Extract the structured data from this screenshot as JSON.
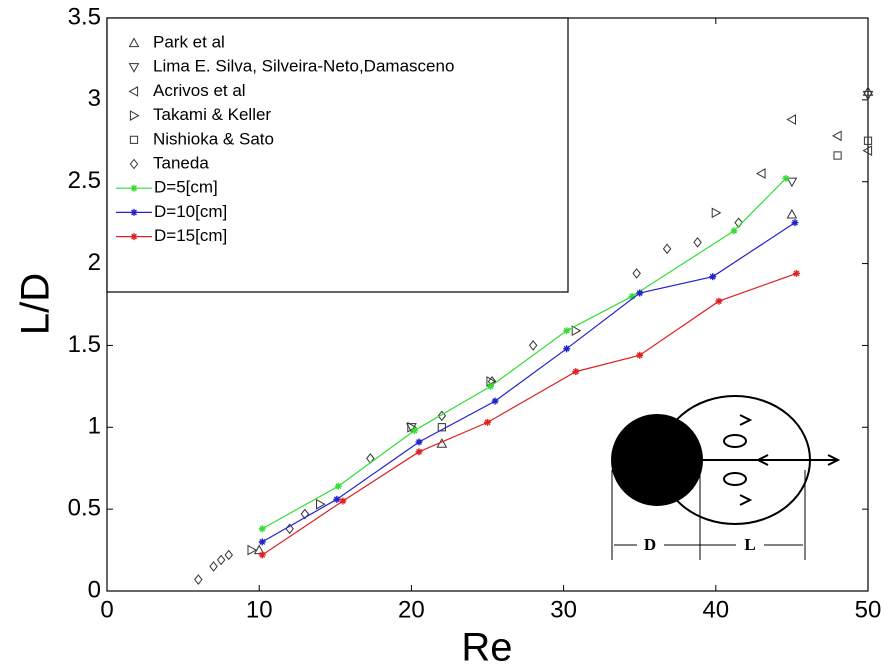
{
  "chart_data": {
    "type": "line",
    "xlabel": "Re",
    "ylabel": "L/D",
    "xlim": [
      0,
      50
    ],
    "xticks": [
      0,
      10,
      20,
      30,
      40,
      50
    ],
    "ylim": [
      0,
      3.5
    ],
    "yticks": [
      0,
      0.5,
      1,
      1.5,
      2,
      2.5,
      3,
      3.5
    ],
    "legend": "upper left",
    "series": [
      {
        "name": "Park et al",
        "color": "#333333",
        "marker": "triangle-up",
        "mode": "markers",
        "x": [
          10,
          22,
          45,
          50
        ],
        "y": [
          0.25,
          0.9,
          2.3,
          3.05
        ]
      },
      {
        "name": "Lima E. Silva, Silveira-Neto,Damasceno",
        "color": "#333333",
        "marker": "triangle-down",
        "mode": "markers",
        "x": [
          20,
          45,
          50
        ],
        "y": [
          1.0,
          2.5,
          3.03
        ]
      },
      {
        "name": "Acrivos et al",
        "color": "#333333",
        "marker": "triangle-left",
        "mode": "markers",
        "x": [
          43,
          45,
          48,
          50
        ],
        "y": [
          2.55,
          2.88,
          2.78,
          2.69
        ]
      },
      {
        "name": "Takami & Keller",
        "color": "#333333",
        "marker": "triangle-right",
        "mode": "markers",
        "x": [
          9.5,
          14,
          20,
          25.2,
          30.8,
          40
        ],
        "y": [
          0.25,
          0.53,
          1.0,
          1.28,
          1.59,
          2.31
        ]
      },
      {
        "name": "Nishioka & Sato",
        "color": "#333333",
        "marker": "square",
        "mode": "markers",
        "x": [
          22,
          48,
          50
        ],
        "y": [
          1.0,
          2.66,
          2.75
        ]
      },
      {
        "name": "Taneda",
        "color": "#333333",
        "marker": "diamond",
        "mode": "markers",
        "x": [
          6,
          7,
          7.5,
          8,
          12,
          13,
          17.3,
          22,
          25.3,
          28,
          34.8,
          36.8,
          38.8,
          41.5
        ],
        "y": [
          0.07,
          0.15,
          0.19,
          0.22,
          0.38,
          0.47,
          0.81,
          1.07,
          1.28,
          1.5,
          1.94,
          2.09,
          2.13,
          2.25
        ]
      },
      {
        "name": "D=5[cm]",
        "color": "#33dd33",
        "marker": "star",
        "mode": "lines+markers",
        "x": [
          10.2,
          15.2,
          20.2,
          25.2,
          30.2,
          34.5,
          41.2,
          44.6
        ],
        "y": [
          0.38,
          0.64,
          0.98,
          1.25,
          1.59,
          1.8,
          2.2,
          2.52
        ]
      },
      {
        "name": "D=10[cm]",
        "color": "#2222cc",
        "marker": "star",
        "mode": "lines+markers",
        "x": [
          10.2,
          15.1,
          20.5,
          25.5,
          30.2,
          35,
          39.8,
          45.2
        ],
        "y": [
          0.3,
          0.56,
          0.91,
          1.16,
          1.48,
          1.82,
          1.92,
          2.25
        ]
      },
      {
        "name": "D=15[cm]",
        "color": "#dd2222",
        "marker": "star",
        "mode": "lines+markers",
        "x": [
          10.2,
          15.5,
          20.5,
          25,
          30.8,
          35,
          40.2,
          45.3
        ],
        "y": [
          0.22,
          0.55,
          0.85,
          1.03,
          1.34,
          1.44,
          1.77,
          1.94
        ]
      }
    ],
    "annotations": [
      "D",
      "L"
    ]
  }
}
